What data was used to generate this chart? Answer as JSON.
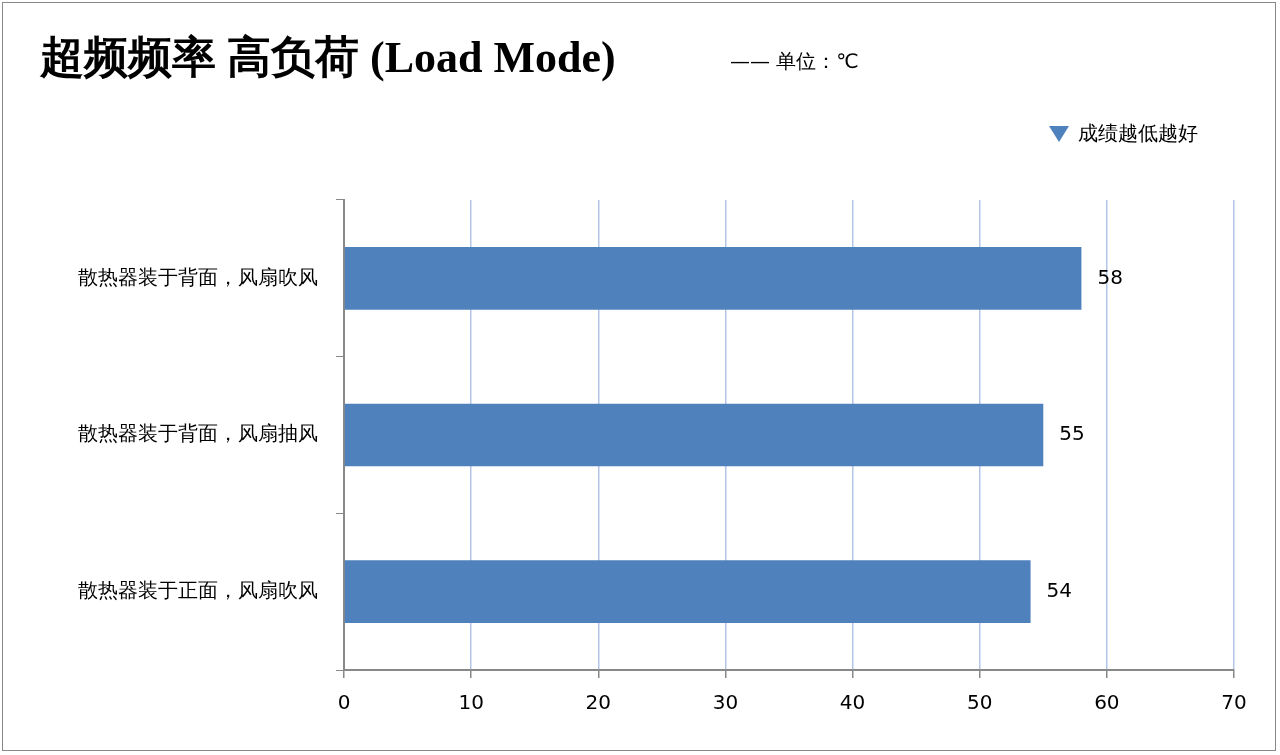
{
  "chart_data": {
    "type": "bar",
    "orientation": "horizontal",
    "title": "超频频率 高负荷 (Load Mode)",
    "subtitle": "—— 单位：℃",
    "annotations": [
      "成绩越低越好"
    ],
    "categories": [
      "散热器装于背面，风扇吹风",
      "散热器装于背面，风扇抽风",
      "散热器装于正面，风扇吹风"
    ],
    "values": [
      58,
      55,
      54
    ],
    "color": "#4f81bd",
    "xlim": [
      0,
      70
    ],
    "xticks": [
      0,
      10,
      20,
      30,
      40,
      50,
      60,
      70
    ],
    "grid": "x",
    "data_labels": true
  }
}
